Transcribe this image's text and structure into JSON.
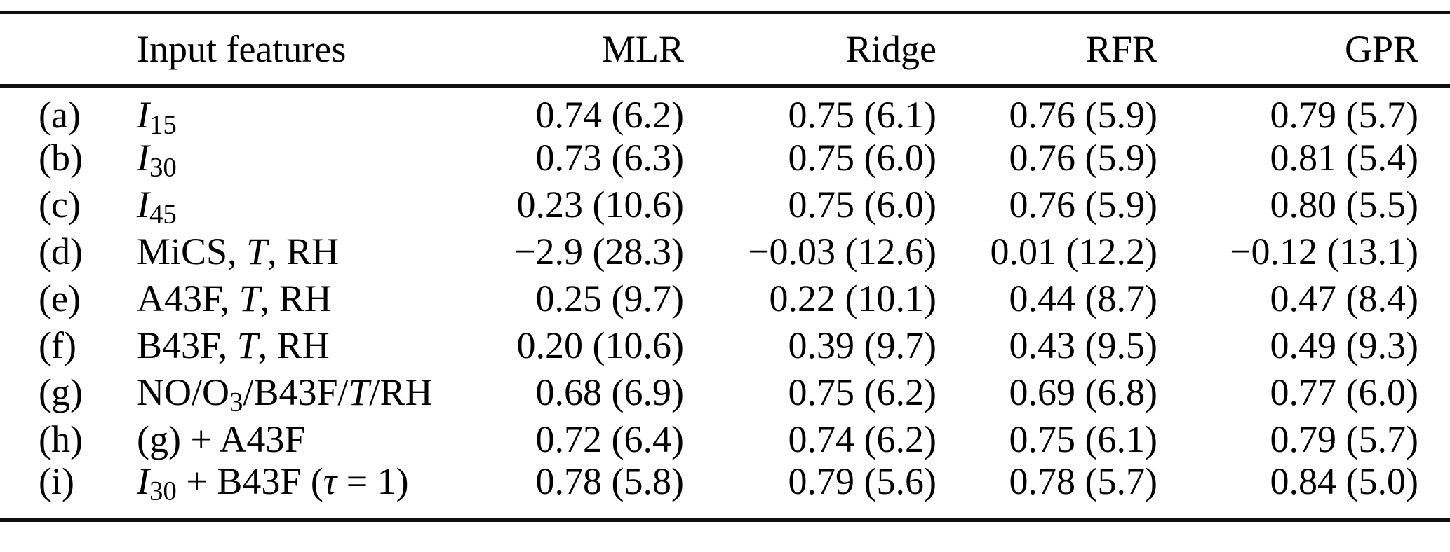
{
  "table": {
    "header": {
      "label_col": "",
      "feature_col": "Input features",
      "model_cols": [
        "MLR",
        "Ridge",
        "RFR",
        "GPR"
      ]
    },
    "rows": [
      {
        "label": "(a)",
        "feature": [
          {
            "t": "I",
            "s": "i"
          },
          {
            "t": "15",
            "s": "sub"
          }
        ],
        "values": [
          "0.74 (6.2)",
          "0.75 (6.1)",
          "0.76 (5.9)",
          "0.79 (5.7)"
        ]
      },
      {
        "label": "(b)",
        "feature": [
          {
            "t": "I",
            "s": "i"
          },
          {
            "t": "30",
            "s": "sub"
          }
        ],
        "values": [
          "0.73 (6.3)",
          "0.75 (6.0)",
          "0.76 (5.9)",
          "0.81 (5.4)"
        ]
      },
      {
        "label": "(c)",
        "feature": [
          {
            "t": "I",
            "s": "i"
          },
          {
            "t": "45",
            "s": "sub"
          }
        ],
        "values": [
          "0.23 (10.6)",
          "0.75 (6.0)",
          "0.76 (5.9)",
          "0.80 (5.5)"
        ]
      },
      {
        "label": "(d)",
        "feature": [
          {
            "t": "MiCS, "
          },
          {
            "t": "T",
            "s": "i"
          },
          {
            "t": ", RH"
          }
        ],
        "values": [
          "−2.9 (28.3)",
          "−0.03 (12.6)",
          "0.01 (12.2)",
          "−0.12 (13.1)"
        ]
      },
      {
        "label": "(e)",
        "feature": [
          {
            "t": "A43F, "
          },
          {
            "t": "T",
            "s": "i"
          },
          {
            "t": ", RH"
          }
        ],
        "values": [
          "0.25 (9.7)",
          "0.22 (10.1)",
          "0.44 (8.7)",
          "0.47 (8.4)"
        ]
      },
      {
        "label": "(f)",
        "feature": [
          {
            "t": "B43F, "
          },
          {
            "t": "T",
            "s": "i"
          },
          {
            "t": ", RH"
          }
        ],
        "values": [
          "0.20 (10.6)",
          "0.39 (9.7)",
          "0.43 (9.5)",
          "0.49 (9.3)"
        ]
      },
      {
        "label": "(g)",
        "feature": [
          {
            "t": "NO/O"
          },
          {
            "t": "3",
            "s": "sub"
          },
          {
            "t": "/B43F/"
          },
          {
            "t": "T",
            "s": "i"
          },
          {
            "t": "/RH"
          }
        ],
        "values": [
          "0.68 (6.9)",
          "0.75 (6.2)",
          "0.69 (6.8)",
          "0.77 (6.0)"
        ]
      },
      {
        "label": "(h)",
        "feature": [
          {
            "t": "(g) + A43F"
          }
        ],
        "values": [
          "0.72 (6.4)",
          "0.74 (6.2)",
          "0.75 (6.1)",
          "0.79 (5.7)"
        ]
      },
      {
        "label": "(i)",
        "feature": [
          {
            "t": "I",
            "s": "i"
          },
          {
            "t": "30",
            "s": "sub"
          },
          {
            "t": " + B43F ("
          },
          {
            "t": "τ",
            "s": "i"
          },
          {
            "t": " = 1)"
          }
        ],
        "values": [
          "0.78 (5.8)",
          "0.79 (5.6)",
          "0.78 (5.7)",
          "0.84 (5.0)"
        ]
      }
    ]
  }
}
